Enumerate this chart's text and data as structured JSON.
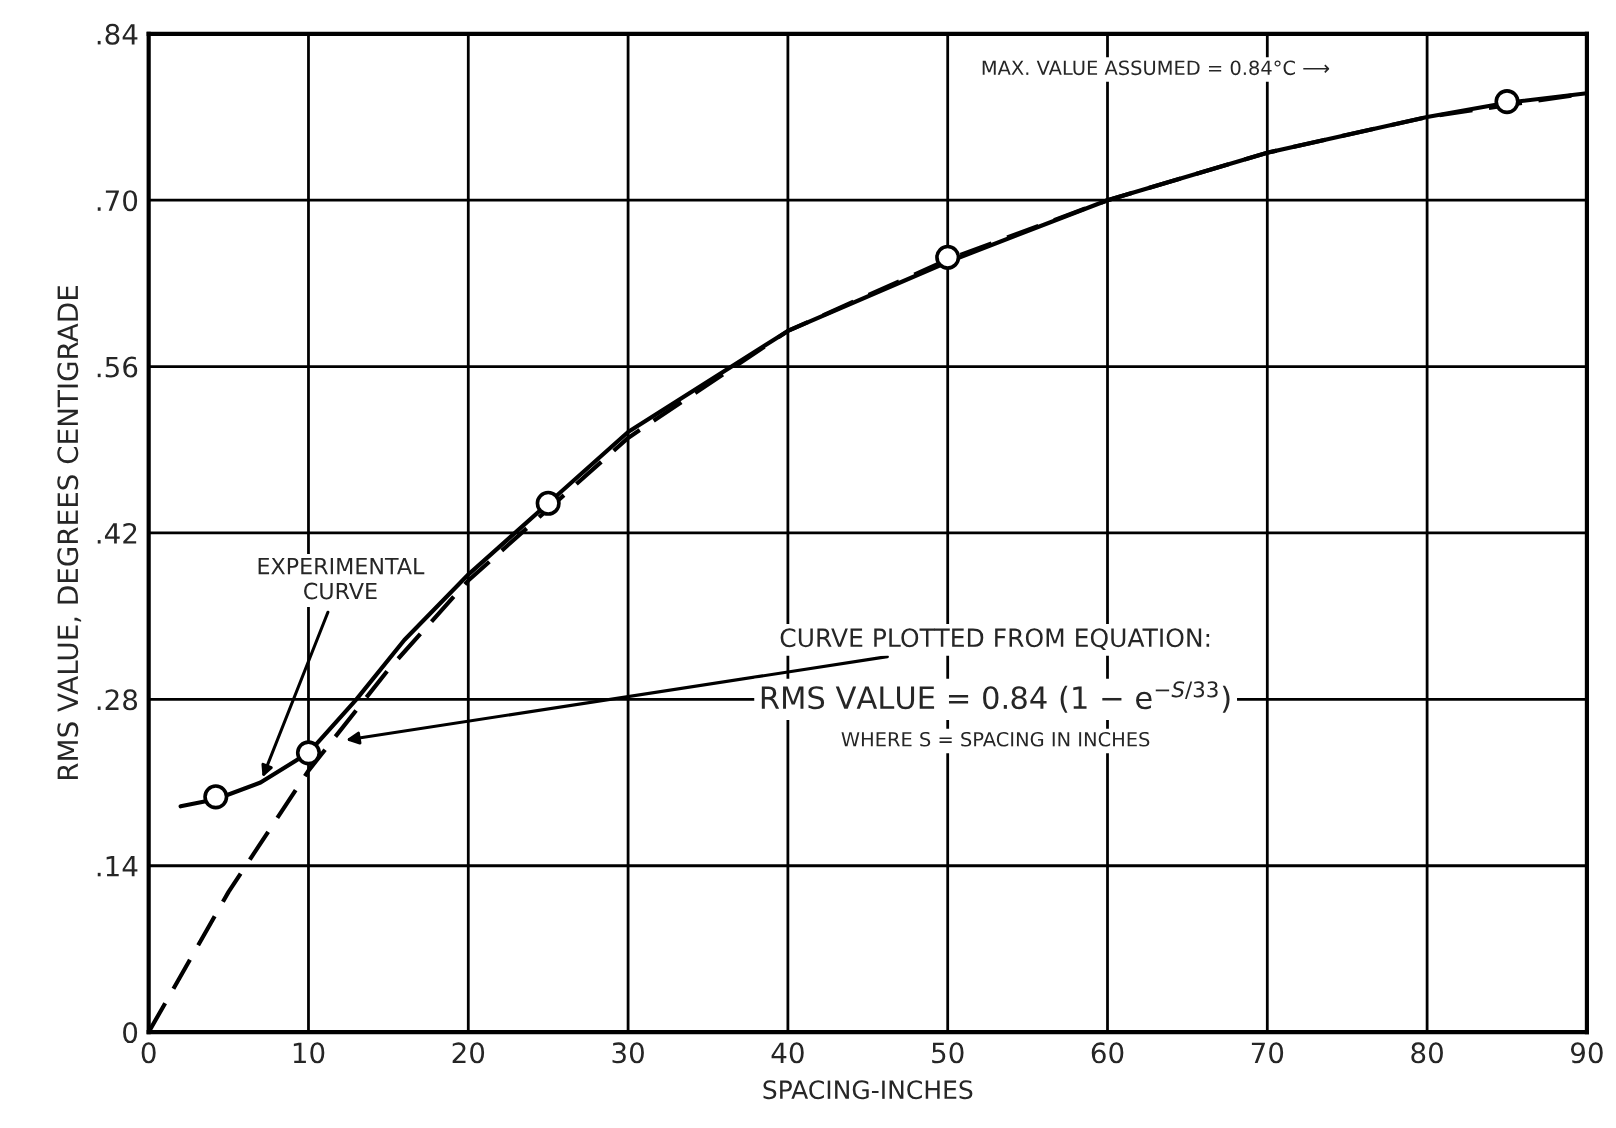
{
  "chart_data": {
    "type": "line",
    "xlabel": "SPACING-INCHES",
    "ylabel": "RMS VALUE, DEGREES CENTIGRADE",
    "xlim": [
      0,
      90
    ],
    "xticks": [
      0,
      10,
      20,
      30,
      40,
      50,
      60,
      70,
      80,
      90
    ],
    "ylim": [
      0,
      0.84
    ],
    "yticks": [
      {
        "value": 0,
        "label": "0"
      },
      {
        "value": 0.14,
        "label": ".14"
      },
      {
        "value": 0.28,
        "label": ".28"
      },
      {
        "value": 0.42,
        "label": ".42"
      },
      {
        "value": 0.56,
        "label": ".56"
      },
      {
        "value": 0.7,
        "label": ".70"
      },
      {
        "value": 0.84,
        "label": ".84"
      }
    ],
    "grid": true,
    "legend": false,
    "series": [
      {
        "color": "#000000",
        "line_style": "solid",
        "marker": "none",
        "x": [
          2,
          4.2,
          7,
          10,
          13,
          16,
          20,
          25,
          30,
          40,
          50,
          60,
          70,
          80,
          85,
          90
        ],
        "values": [
          0.19,
          0.196,
          0.21,
          0.235,
          0.28,
          0.33,
          0.385,
          0.445,
          0.505,
          0.59,
          0.648,
          0.7,
          0.74,
          0.77,
          0.782,
          0.79
        ]
      },
      {
        "color": "#000000",
        "line_style": "dashed",
        "marker": "none",
        "x": [
          0,
          5,
          10,
          15,
          20,
          25,
          30,
          40,
          50,
          60,
          70,
          80,
          90
        ],
        "values": [
          0,
          0.118,
          0.22,
          0.305,
          0.38,
          0.44,
          0.5,
          0.59,
          0.65,
          0.7,
          0.74,
          0.77,
          0.79
        ]
      },
      {
        "type": "scatter",
        "color": "#000000",
        "marker": "circle",
        "x": [
          4.2,
          10,
          25,
          50,
          85
        ],
        "values": [
          0.198,
          0.235,
          0.445,
          0.652,
          0.783
        ]
      }
    ],
    "annotations": [
      {
        "text": "EXPERIMENTAL\nCURVE",
        "x": 7,
        "y": 0.21
      },
      {
        "text": "CURVE PLOTTED FROM EQUATION:",
        "x": 12,
        "y": 0.245
      },
      "RMS VALUE = 0.84 (1 − e$^{−S/33}$)",
      "WHERE S = SPACING IN INCHES",
      "MAX. VALUE ASSUMED = 0.84°C ⟶"
    ]
  }
}
